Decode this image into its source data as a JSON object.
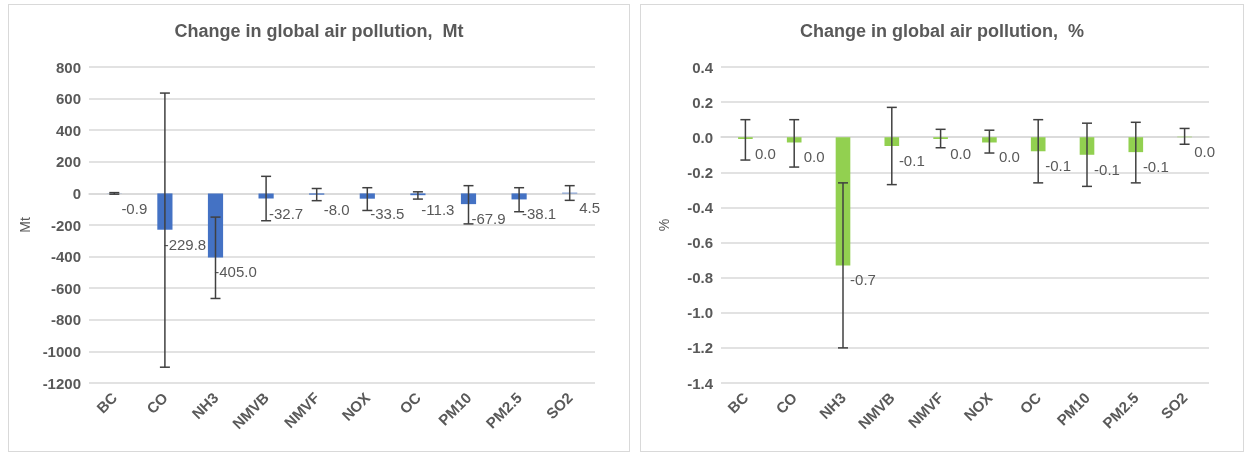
{
  "chart_data": [
    {
      "type": "bar",
      "title": "Change in global air pollution,  Mt",
      "ylabel": "Mt",
      "categories": [
        "BC",
        "CO",
        "NH3",
        "NMVB",
        "NMVF",
        "NOX",
        "OC",
        "PM10",
        "PM2.5",
        "SO2"
      ],
      "values": [
        -0.9,
        -229.8,
        -405.0,
        -32.7,
        -8.0,
        -33.5,
        -11.3,
        -67.9,
        -38.1,
        4.5
      ],
      "value_labels": [
        "-0.9",
        "-229.8",
        "-405.0",
        "-32.7",
        "-8.0",
        "-33.5",
        "-11.3",
        "-67.9",
        "-38.1",
        "4.5"
      ],
      "color": "#4472c4",
      "errors": [
        [
          -5,
          5
        ],
        [
          -1100,
          635
        ],
        [
          -665,
          -150
        ],
        [
          -173,
          108
        ],
        [
          -46,
          31
        ],
        [
          -108,
          36
        ],
        [
          -36,
          10
        ],
        [
          -193,
          49
        ],
        [
          -116,
          36
        ],
        [
          -44,
          49
        ]
      ],
      "ylim": [
        -1200,
        800
      ],
      "yticks": [
        -1200,
        -1000,
        -800,
        -600,
        -400,
        -200,
        0,
        200,
        400,
        600,
        800
      ],
      "grid": "y"
    },
    {
      "type": "bar",
      "title": "Change in global air pollution,  %",
      "ylabel": "%",
      "categories": [
        "BC",
        "CO",
        "NH3",
        "NMVB",
        "NMVF",
        "NOX",
        "OC",
        "PM10",
        "PM2.5",
        "SO2"
      ],
      "values": [
        -0.01,
        -0.03,
        -0.73,
        -0.05,
        -0.01,
        -0.03,
        -0.08,
        -0.1,
        -0.085,
        0.003
      ],
      "value_labels": [
        "0.0",
        "0.0",
        "-0.7",
        "-0.1",
        "0.0",
        "0.0",
        "-0.1",
        "-0.1",
        "-0.1",
        "0.0"
      ],
      "color": "#92d050",
      "errors": [
        [
          -0.13,
          0.1
        ],
        [
          -0.17,
          0.1
        ],
        [
          -1.2,
          -0.26
        ],
        [
          -0.27,
          0.17
        ],
        [
          -0.06,
          0.045
        ],
        [
          -0.09,
          0.04
        ],
        [
          -0.26,
          0.1
        ],
        [
          -0.28,
          0.08
        ],
        [
          -0.26,
          0.085
        ],
        [
          -0.04,
          0.05
        ]
      ],
      "ylim": [
        -1.4,
        0.4
      ],
      "yticks": [
        {
          "value": -1.4,
          "label": "-1.4"
        },
        {
          "value": -1.2,
          "label": "-1.2"
        },
        {
          "value": -1.0,
          "label": "-1.0"
        },
        {
          "value": -0.8,
          "label": "-0.8"
        },
        {
          "value": -0.6,
          "label": "-0.6"
        },
        {
          "value": -0.4,
          "label": "-0.4"
        },
        {
          "value": -0.2,
          "label": "-0.2"
        },
        {
          "value": 0,
          "label": "0.0"
        },
        {
          "value": 0.2,
          "label": "0.2"
        },
        {
          "value": 0.4,
          "label": "0.4"
        }
      ],
      "grid": "y"
    }
  ]
}
